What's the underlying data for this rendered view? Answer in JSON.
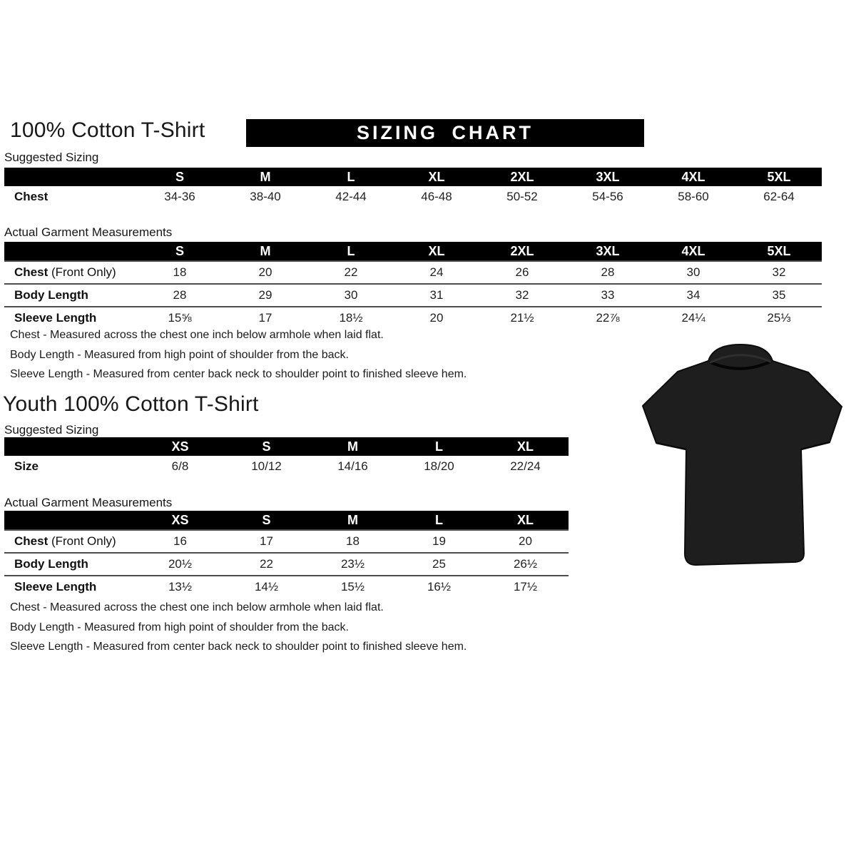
{
  "page": {
    "adult_title": "100% Cotton T-Shirt",
    "banner_label": "SIZING CHART",
    "youth_title": "Youth 100% Cotton T-Shirt",
    "suggested_label_adult": "Suggested Sizing",
    "actual_label_adult": "Actual Garment Measurements",
    "suggested_label_youth": "Suggested Sizing",
    "actual_label_youth": "Actual Garment Measurements"
  },
  "colors": {
    "banner_bg": "#000000",
    "banner_text": "#ffffff",
    "table_header_bg": "#000000",
    "table_header_text": "#ffffff",
    "body_text": "#1a1a1a",
    "shirt_fill": "#1e1e1e"
  },
  "icons": {
    "tshirt": "black-short-sleeve-crewneck-tshirt"
  },
  "adult": {
    "suggested": {
      "columns": [
        "S",
        "M",
        "L",
        "XL",
        "2XL",
        "3XL",
        "4XL",
        "5XL"
      ],
      "rows": [
        {
          "label": "Chest",
          "values": [
            "34-36",
            "38-40",
            "42-44",
            "46-48",
            "50-52",
            "54-56",
            "58-60",
            "62-64"
          ]
        }
      ]
    },
    "actual": {
      "columns": [
        "S",
        "M",
        "L",
        "XL",
        "2XL",
        "3XL",
        "4XL",
        "5XL"
      ],
      "rows": [
        {
          "label": "Chest",
          "label_suffix": " (Front Only)",
          "values": [
            "18",
            "20",
            "22",
            "24",
            "26",
            "28",
            "30",
            "32"
          ]
        },
        {
          "label": "Body Length",
          "values": [
            "28",
            "29",
            "30",
            "31",
            "32",
            "33",
            "34",
            "35"
          ]
        },
        {
          "label": "Sleeve Length",
          "values": [
            "15⅝",
            "17",
            "18½",
            "20",
            "21½",
            "22⅞",
            "24¼",
            "25⅓"
          ]
        }
      ]
    },
    "notes": [
      "Chest - Measured across the chest one inch below armhole when laid flat.",
      "Body Length - Measured from high point of shoulder from the back.",
      "Sleeve Length - Measured from center back neck to shoulder point to finished sleeve hem."
    ]
  },
  "youth": {
    "suggested": {
      "columns": [
        "XS",
        "S",
        "M",
        "L",
        "XL"
      ],
      "rows": [
        {
          "label": "Size",
          "values": [
            "6/8",
            "10/12",
            "14/16",
            "18/20",
            "22/24"
          ]
        }
      ]
    },
    "actual": {
      "columns": [
        "XS",
        "S",
        "M",
        "L",
        "XL"
      ],
      "rows": [
        {
          "label": "Chest",
          "label_suffix": " (Front Only)",
          "values": [
            "16",
            "17",
            "18",
            "19",
            "20"
          ]
        },
        {
          "label": "Body Length",
          "values": [
            "20½",
            "22",
            "23½",
            "25",
            "26½"
          ]
        },
        {
          "label": "Sleeve Length",
          "values": [
            "13½",
            "14½",
            "15½",
            "16½",
            "17½"
          ]
        }
      ]
    },
    "notes": [
      "Chest - Measured across the chest one inch below armhole when laid flat.",
      "Body Length - Measured from high point of shoulder from the back.",
      "Sleeve Length - Measured from center back neck to shoulder point to finished sleeve hem."
    ]
  }
}
